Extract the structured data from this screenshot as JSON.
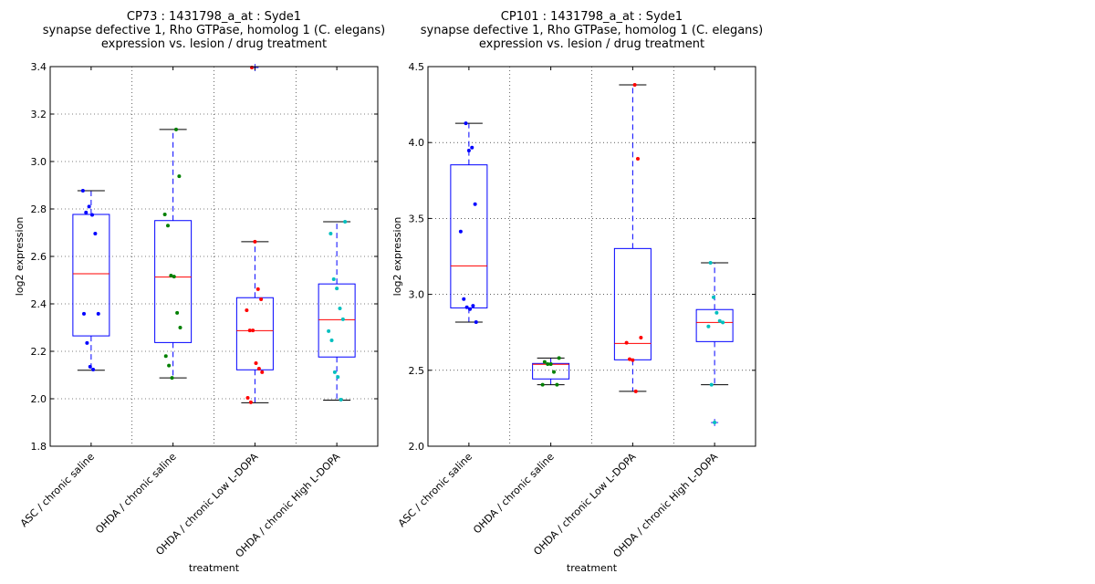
{
  "colors": {
    "box": "#0000ff",
    "median": "#ff0000",
    "whisker": "#0000ff",
    "cap": "#000000",
    "groups": [
      "#0000ff",
      "#008000",
      "#ff0000",
      "#00bfbf"
    ]
  },
  "chart_data": [
    {
      "type": "box",
      "title": [
        "CP73 : 1431798_a_at : Syde1",
        "synapse defective 1, Rho GTPase, homolog 1 (C. elegans)",
        "expression vs. lesion / drug treatment"
      ],
      "xlabel": "treatment",
      "ylabel": "log2 expression",
      "ylim": [
        1.8,
        3.4
      ],
      "yticks": [
        "1.8",
        "2.0",
        "2.2",
        "2.4",
        "2.6",
        "2.8",
        "3.0",
        "3.2",
        "3.4"
      ],
      "grid": true,
      "categories": [
        "ASC / chronic saline",
        "OHDA / chronic saline",
        "OHDA / chronic Low L-DOPA",
        "OHDA / chronic High L-DOPA"
      ],
      "boxes": [
        {
          "q1": 2.265,
          "median": 2.527,
          "q3": 2.777,
          "whislo": 2.12,
          "whishi": 2.877,
          "fliers": [],
          "points": [
            2.877,
            2.785,
            2.81,
            2.775,
            2.696,
            2.358,
            2.358,
            2.235,
            2.135,
            2.123
          ]
        },
        {
          "q1": 2.237,
          "median": 2.513,
          "q3": 2.751,
          "whislo": 2.088,
          "whishi": 3.135,
          "fliers": [],
          "points": [
            3.135,
            2.938,
            2.777,
            2.73,
            2.519,
            2.515,
            2.362,
            2.3,
            2.18,
            2.14,
            2.088
          ]
        },
        {
          "q1": 2.122,
          "median": 2.287,
          "q3": 2.426,
          "whislo": 1.983,
          "whishi": 2.662,
          "fliers": [
            3.396
          ],
          "points": [
            3.396,
            2.662,
            2.462,
            2.419,
            2.373,
            2.288,
            2.288,
            2.15,
            2.127,
            2.112,
            2.004,
            1.985
          ]
        },
        {
          "q1": 2.176,
          "median": 2.333,
          "q3": 2.484,
          "whislo": 1.994,
          "whishi": 2.746,
          "fliers": [],
          "points": [
            2.746,
            2.696,
            2.504,
            2.465,
            2.381,
            2.335,
            2.285,
            2.246,
            2.112,
            2.092,
            1.996
          ]
        }
      ]
    },
    {
      "type": "box",
      "title": [
        "CP101 : 1431798_a_at : Syde1",
        "synapse defective 1, Rho GTPase, homolog 1 (C. elegans)",
        "expression vs. lesion / drug treatment"
      ],
      "xlabel": "treatment",
      "ylabel": "log2 expression",
      "ylim": [
        2.0,
        4.5
      ],
      "yticks": [
        "2.0",
        "2.5",
        "3.0",
        "3.5",
        "4.0",
        "4.5"
      ],
      "grid": true,
      "categories": [
        "ASC / chronic saline",
        "OHDA / chronic saline",
        "OHDA / chronic Low L-DOPA",
        "OHDA / chronic High L-DOPA"
      ],
      "boxes": [
        {
          "q1": 2.911,
          "median": 3.188,
          "q3": 3.853,
          "whislo": 2.817,
          "whishi": 4.127,
          "fliers": [],
          "points": [
            4.127,
            3.947,
            3.967,
            3.594,
            3.414,
            2.969,
            2.915,
            2.903,
            2.925,
            2.817
          ]
        },
        {
          "q1": 2.443,
          "median": 2.539,
          "q3": 2.545,
          "whislo": 2.405,
          "whishi": 2.581,
          "fliers": [],
          "points": [
            2.581,
            2.555,
            2.541,
            2.541,
            2.489,
            2.405,
            2.405
          ]
        },
        {
          "q1": 2.569,
          "median": 2.677,
          "q3": 3.302,
          "whislo": 2.361,
          "whishi": 4.38,
          "fliers": [],
          "points": [
            4.38,
            3.893,
            2.715,
            2.681,
            2.573,
            2.567,
            2.361
          ]
        },
        {
          "q1": 2.689,
          "median": 2.815,
          "q3": 2.9,
          "whislo": 2.405,
          "whishi": 3.208,
          "fliers": [
            2.156
          ],
          "points": [
            3.208,
            2.981,
            2.879,
            2.825,
            2.815,
            2.789,
            2.405,
            2.156
          ]
        }
      ]
    }
  ]
}
